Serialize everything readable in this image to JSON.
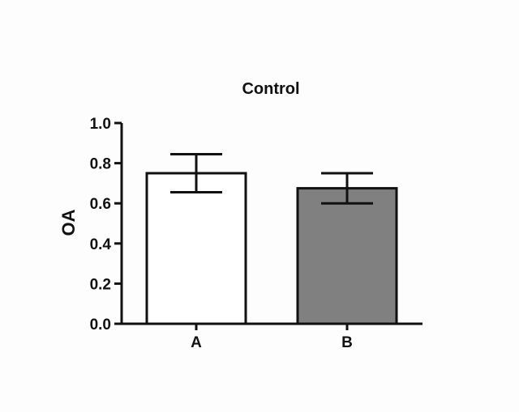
{
  "chart_data": {
    "type": "bar",
    "title": "Control",
    "xlabel": "",
    "ylabel": "OA",
    "ylim": [
      0,
      1.0
    ],
    "yticks": [
      "0.0",
      "0.2",
      "0.4",
      "0.6",
      "0.8",
      "1.0"
    ],
    "categories": [
      "A",
      "B"
    ],
    "values": [
      0.75,
      0.675
    ],
    "errors": [
      0.095,
      0.075
    ],
    "colors": [
      "#ffffff",
      "#808080"
    ],
    "grid": false
  }
}
